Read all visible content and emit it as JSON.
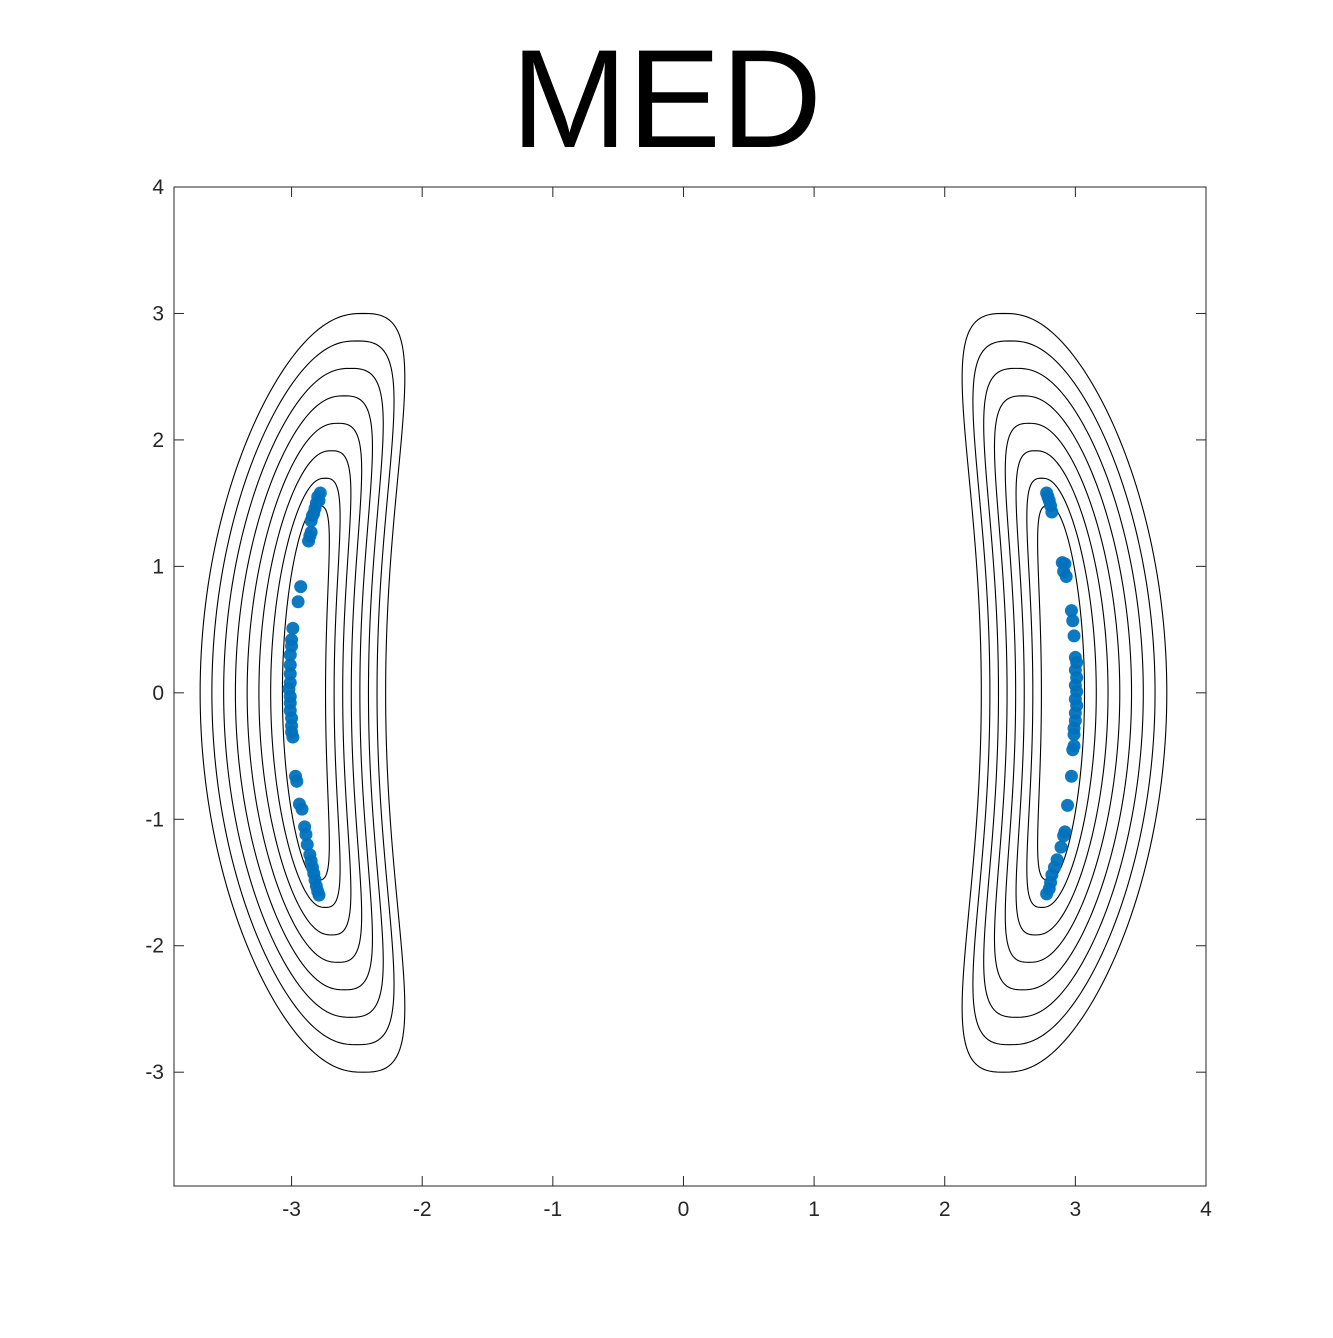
{
  "chart_data": {
    "type": "scatter",
    "title": "MED",
    "xlabel": "",
    "ylabel": "",
    "xlim": [
      -3.9,
      4
    ],
    "ylim": [
      -3.9,
      4
    ],
    "xticks": [
      -3,
      -2,
      -1,
      0,
      1,
      2,
      3,
      4
    ],
    "yticks": [
      -3,
      -2,
      -1,
      0,
      1,
      2,
      3,
      4
    ],
    "xtick_labels": [
      "-3",
      "-2",
      "-1",
      "0",
      "1",
      "2",
      "3",
      "4"
    ],
    "ytick_labels": [
      "-3",
      "-2",
      "-1",
      "0",
      "1",
      "2",
      "3",
      "4"
    ],
    "grid": false,
    "box": true,
    "contour": {
      "description_of_density": "symmetric bimodal density, two crescent-shaped modes centered near x = -2.9 and x = 2.9",
      "levels_count": 8,
      "line_color": "#000000",
      "max_extent_y": 3.0
    },
    "series": [
      {
        "color": "#0072BD",
        "points": [
          [
            -2.78,
            1.58
          ],
          [
            -2.8,
            1.55
          ],
          [
            -2.79,
            1.52
          ],
          [
            -2.81,
            1.5
          ],
          [
            -2.82,
            1.46
          ],
          [
            -2.83,
            1.42
          ],
          [
            -2.84,
            1.4
          ],
          [
            -2.85,
            1.36
          ],
          [
            -2.86,
            1.24
          ],
          [
            -2.87,
            1.2
          ],
          [
            -2.85,
            1.27
          ],
          [
            -2.93,
            0.84
          ],
          [
            -2.95,
            0.72
          ],
          [
            -2.99,
            0.51
          ],
          [
            -3.0,
            0.42
          ],
          [
            -3.0,
            0.37
          ],
          [
            -3.01,
            0.3
          ],
          [
            -3.01,
            0.22
          ],
          [
            -3.01,
            0.15
          ],
          [
            -3.01,
            0.08
          ],
          [
            -3.02,
            0.03
          ],
          [
            -3.01,
            -0.03
          ],
          [
            -3.01,
            -0.08
          ],
          [
            -3.01,
            -0.14
          ],
          [
            -3.0,
            -0.2
          ],
          [
            -3.0,
            -0.26
          ],
          [
            -3.0,
            -0.31
          ],
          [
            -2.99,
            -0.35
          ],
          [
            -2.97,
            -0.66
          ],
          [
            -2.96,
            -0.7
          ],
          [
            -2.94,
            -0.88
          ],
          [
            -2.92,
            -0.92
          ],
          [
            -2.9,
            -1.06
          ],
          [
            -2.89,
            -1.12
          ],
          [
            -2.88,
            -1.2
          ],
          [
            -2.86,
            -1.28
          ],
          [
            -2.85,
            -1.33
          ],
          [
            -2.84,
            -1.38
          ],
          [
            -2.83,
            -1.43
          ],
          [
            -2.82,
            -1.48
          ],
          [
            -2.81,
            -1.53
          ],
          [
            -2.8,
            -1.57
          ],
          [
            -2.79,
            -1.6
          ],
          [
            2.78,
            1.58
          ],
          [
            2.79,
            1.55
          ],
          [
            2.8,
            1.52
          ],
          [
            2.81,
            1.48
          ],
          [
            2.82,
            1.43
          ],
          [
            2.9,
            1.03
          ],
          [
            2.92,
            1.02
          ],
          [
            2.91,
            0.96
          ],
          [
            2.93,
            0.92
          ],
          [
            2.97,
            0.65
          ],
          [
            2.98,
            0.57
          ],
          [
            2.99,
            0.45
          ],
          [
            3.0,
            0.28
          ],
          [
            3.01,
            0.24
          ],
          [
            3.0,
            0.18
          ],
          [
            3.01,
            0.12
          ],
          [
            3.0,
            0.06
          ],
          [
            3.01,
            0.01
          ],
          [
            3.0,
            -0.05
          ],
          [
            3.01,
            -0.1
          ],
          [
            3.0,
            -0.16
          ],
          [
            3.0,
            -0.22
          ],
          [
            2.99,
            -0.28
          ],
          [
            2.99,
            -0.33
          ],
          [
            2.99,
            -0.42
          ],
          [
            2.98,
            -0.45
          ],
          [
            2.97,
            -0.66
          ],
          [
            2.94,
            -0.89
          ],
          [
            2.92,
            -1.1
          ],
          [
            2.91,
            -1.13
          ],
          [
            2.89,
            -1.22
          ],
          [
            2.86,
            -1.32
          ],
          [
            2.84,
            -1.38
          ],
          [
            2.82,
            -1.44
          ],
          [
            2.81,
            -1.5
          ],
          [
            2.8,
            -1.55
          ],
          [
            2.78,
            -1.59
          ]
        ]
      }
    ]
  }
}
